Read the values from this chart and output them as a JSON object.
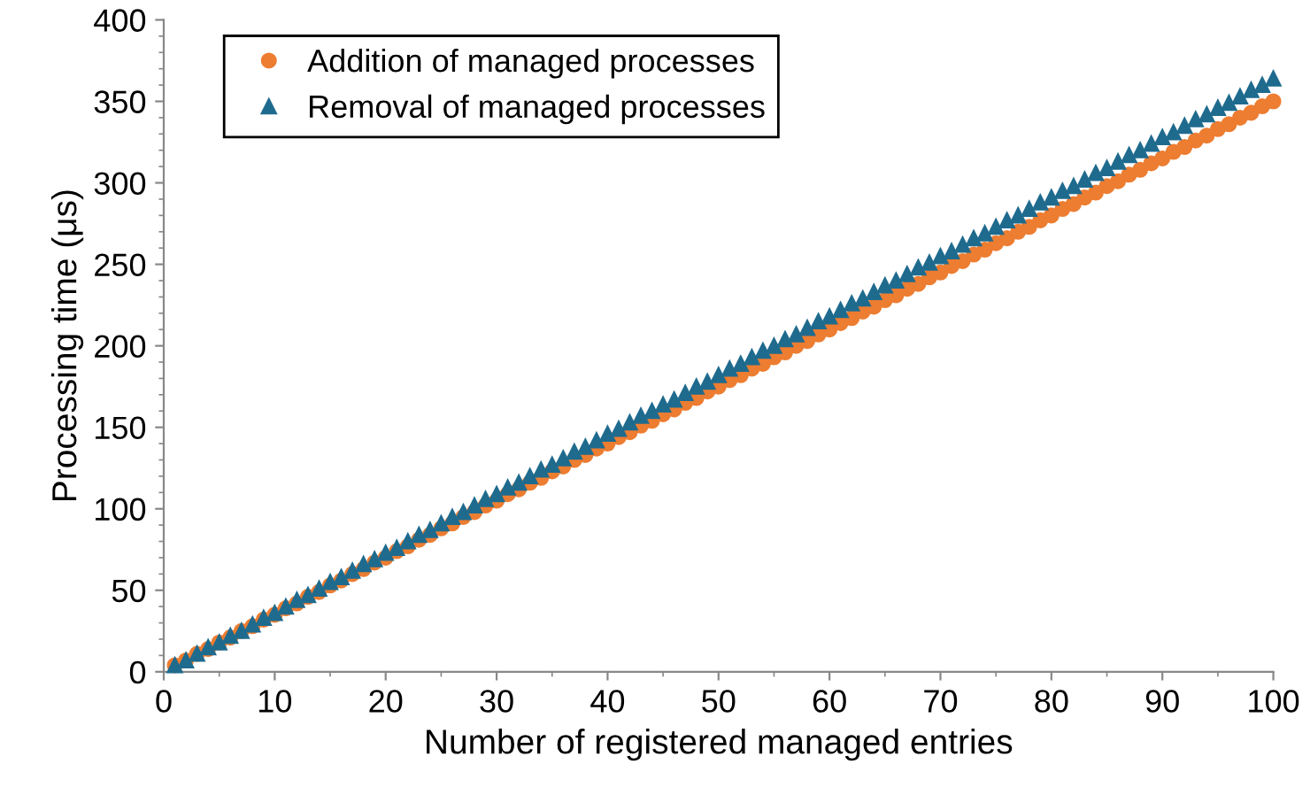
{
  "chart_data": {
    "type": "scatter",
    "xlabel": "Number of registered managed entries",
    "ylabel": "Processing time (μs)",
    "x": [
      1,
      2,
      3,
      4,
      5,
      6,
      7,
      8,
      9,
      10,
      11,
      12,
      13,
      14,
      15,
      16,
      17,
      18,
      19,
      20,
      21,
      22,
      23,
      24,
      25,
      26,
      27,
      28,
      29,
      30,
      31,
      32,
      33,
      34,
      35,
      36,
      37,
      38,
      39,
      40,
      41,
      42,
      43,
      44,
      45,
      46,
      47,
      48,
      49,
      50,
      51,
      52,
      53,
      54,
      55,
      56,
      57,
      58,
      59,
      60,
      61,
      62,
      63,
      64,
      65,
      66,
      67,
      68,
      69,
      70,
      71,
      72,
      73,
      74,
      75,
      76,
      77,
      78,
      79,
      80,
      81,
      82,
      83,
      84,
      85,
      86,
      87,
      88,
      89,
      90,
      91,
      92,
      93,
      94,
      95,
      96,
      97,
      98,
      99,
      100
    ],
    "series": [
      {
        "name": "Addition of managed processes",
        "color": "#ed7d31",
        "marker": "circle",
        "values": [
          4,
          7,
          11,
          14,
          18,
          21,
          25,
          28,
          32,
          35,
          39,
          42,
          46,
          49,
          53,
          56,
          60,
          63,
          67,
          70,
          74,
          77,
          81,
          84,
          88,
          91,
          95,
          98,
          102,
          105,
          109,
          112,
          116,
          119,
          123,
          126,
          130,
          133,
          137,
          140,
          144,
          147,
          151,
          154,
          158,
          161,
          165,
          168,
          172,
          175,
          179,
          182,
          186,
          189,
          193,
          196,
          200,
          203,
          207,
          210,
          214,
          217,
          221,
          224,
          228,
          231,
          235,
          238,
          242,
          245,
          249,
          252,
          256,
          259,
          263,
          266,
          270,
          273,
          277,
          280,
          284,
          287,
          291,
          294,
          298,
          301,
          305,
          308,
          312,
          315,
          319,
          322,
          326,
          329,
          333,
          336,
          340,
          343,
          347,
          350
        ]
      },
      {
        "name": "Removal of managed processes",
        "color": "#1f6b8e",
        "marker": "triangle",
        "values": [
          4,
          7,
          11,
          15,
          18,
          22,
          25,
          29,
          33,
          36,
          40,
          44,
          47,
          51,
          55,
          58,
          62,
          66,
          69,
          73,
          76,
          80,
          84,
          87,
          91,
          95,
          98,
          102,
          106,
          109,
          113,
          116,
          120,
          124,
          127,
          131,
          135,
          138,
          142,
          146,
          149,
          153,
          157,
          160,
          164,
          167,
          171,
          175,
          178,
          182,
          186,
          189,
          193,
          197,
          200,
          204,
          207,
          211,
          215,
          218,
          222,
          226,
          229,
          233,
          237,
          240,
          244,
          248,
          251,
          255,
          258,
          262,
          266,
          269,
          273,
          277,
          280,
          284,
          288,
          291,
          295,
          298,
          302,
          306,
          309,
          313,
          317,
          320,
          324,
          328,
          331,
          335,
          339,
          342,
          346,
          349,
          353,
          357,
          360,
          364
        ]
      }
    ],
    "xlim": [
      0,
      100
    ],
    "xticks": [
      0,
      10,
      20,
      30,
      40,
      50,
      60,
      70,
      80,
      90,
      100
    ],
    "ylim": [
      0,
      400
    ],
    "yticks": [
      0,
      50,
      100,
      150,
      200,
      250,
      300,
      350,
      400
    ],
    "grid": false,
    "legend": "top left"
  }
}
